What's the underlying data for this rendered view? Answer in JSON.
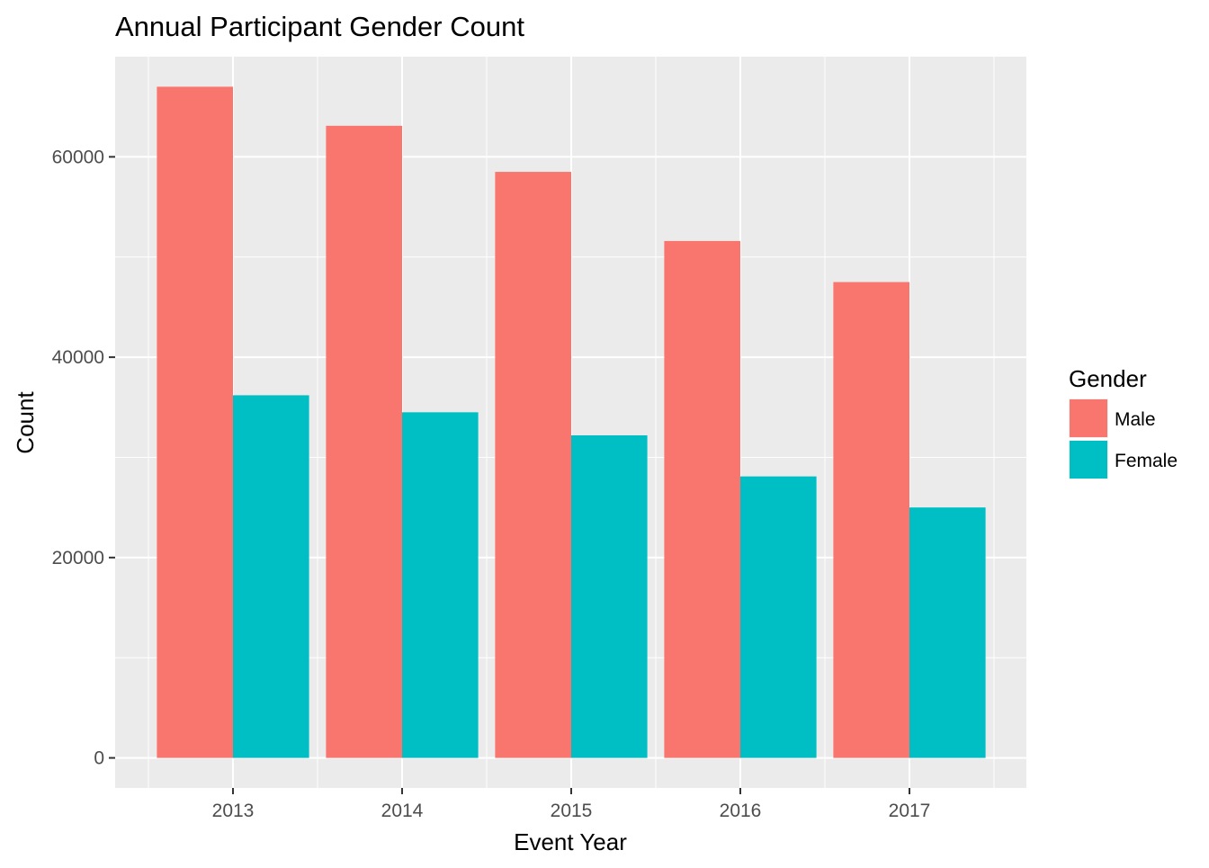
{
  "chart_data": {
    "type": "bar",
    "title": "Annual Participant Gender Count",
    "xlabel": "Event Year",
    "ylabel": "Count",
    "categories": [
      "2013",
      "2014",
      "2015",
      "2016",
      "2017"
    ],
    "series": [
      {
        "name": "Male",
        "values": [
          67000,
          63100,
          58500,
          51600,
          47500
        ],
        "color": "#F8766D"
      },
      {
        "name": "Female",
        "values": [
          36200,
          34500,
          32200,
          28100,
          25000
        ],
        "color": "#00BFC4"
      }
    ],
    "ylim": [
      -3000,
      70000
    ],
    "yticks": [
      0,
      20000,
      40000,
      60000
    ],
    "ytick_labels": [
      "0",
      "20000",
      "40000",
      "60000"
    ],
    "legend": {
      "title": "Gender",
      "placement": "right"
    },
    "panel_background": "#EBEBEB",
    "grid": true,
    "grid_color": "#FFFFFF"
  }
}
